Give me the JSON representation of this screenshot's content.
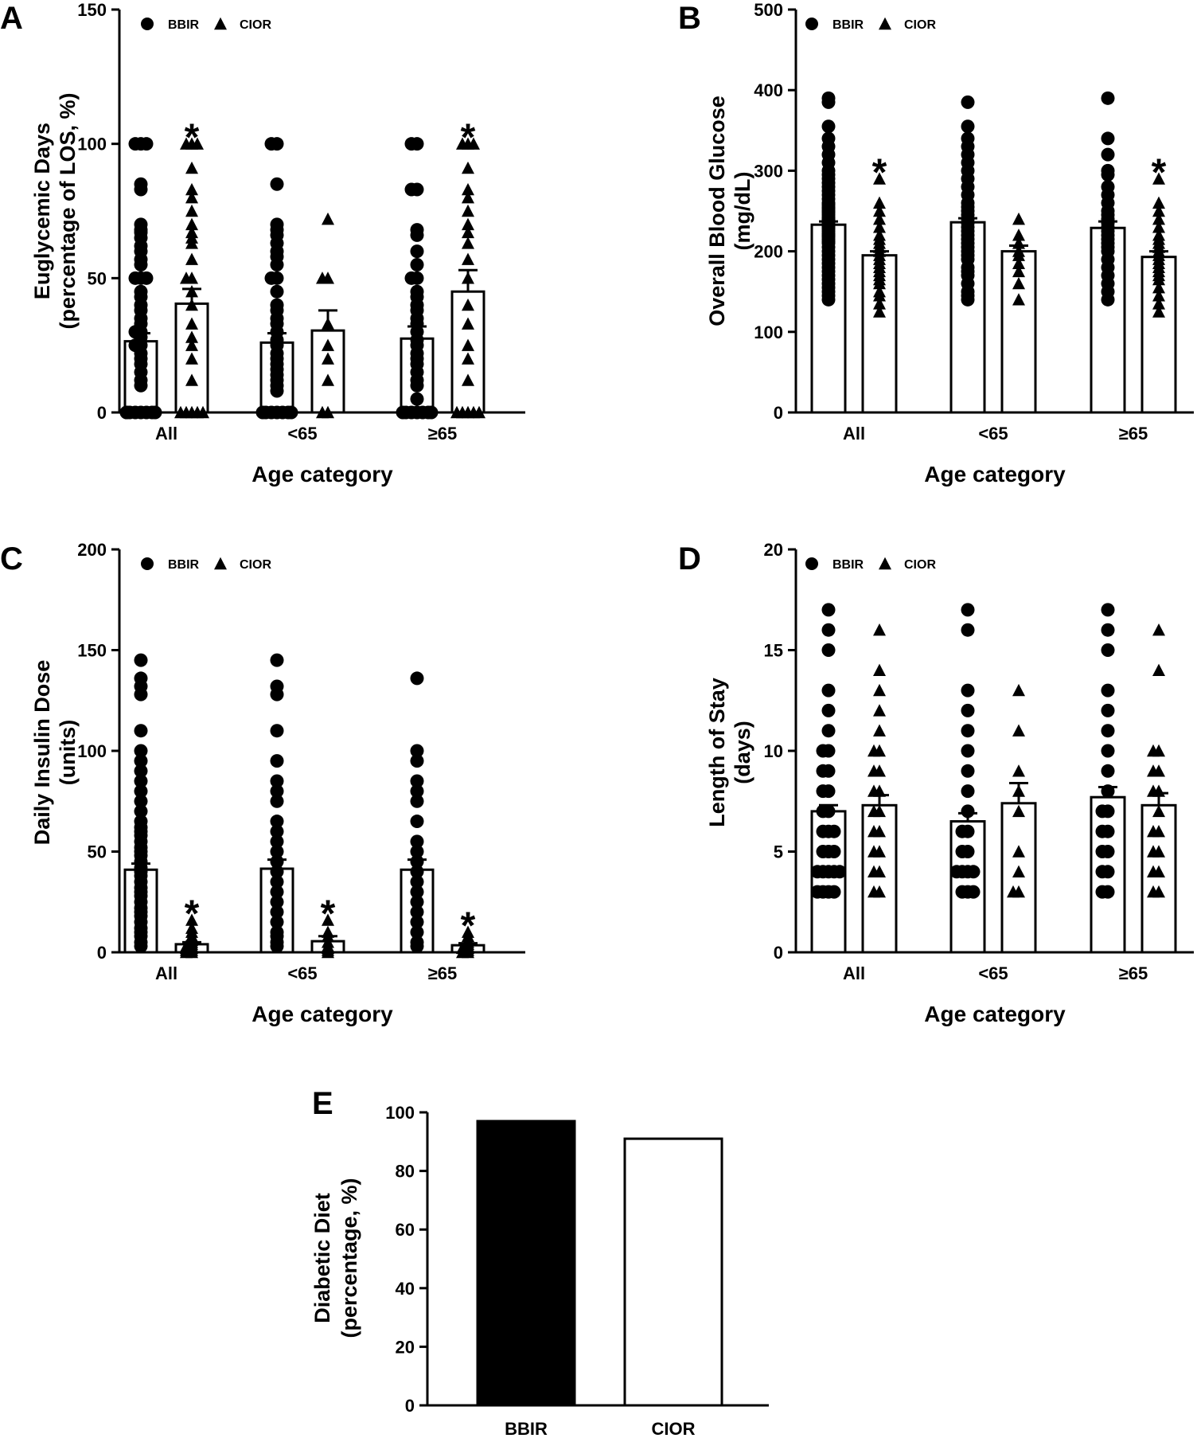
{
  "chart_data": [
    {
      "panel": "A",
      "type": "bar",
      "ylabel_lines": [
        "Euglycemic Days",
        "(percentage of LOS, %)"
      ],
      "xlabel": "Age category",
      "categories": [
        "All",
        "<65",
        "≥65"
      ],
      "ylim": [
        0,
        150
      ],
      "yticks": [
        "0",
        "50",
        "100",
        "150"
      ],
      "legend": [
        "BBIR",
        "CIOR"
      ],
      "significance_marker": "*",
      "series": [
        {
          "name": "BBIR",
          "marker": "circle",
          "means": [
            26.5,
            26,
            27.5
          ],
          "sems": [
            3,
            3.5,
            4.5
          ],
          "points": [
            [
              0,
              0,
              0,
              0,
              0,
              0,
              0,
              0,
              10,
              12,
              15,
              18,
              20,
              22,
              25,
              25,
              28,
              30,
              30,
              33,
              35,
              38,
              40,
              43,
              45,
              50,
              50,
              50,
              55,
              57,
              60,
              62,
              65,
              67,
              68,
              70,
              83,
              85,
              100,
              100,
              100
            ],
            [
              0,
              0,
              0,
              0,
              0,
              0,
              0,
              8,
              10,
              12,
              14,
              16,
              18,
              20,
              22,
              25,
              27,
              30,
              33,
              35,
              38,
              40,
              45,
              50,
              50,
              55,
              58,
              60,
              63,
              66,
              68,
              70,
              85,
              100,
              100
            ],
            [
              0,
              0,
              0,
              0,
              0,
              0,
              0,
              5,
              10,
              12,
              15,
              18,
              20,
              22,
              25,
              27,
              30,
              33,
              35,
              38,
              40,
              43,
              45,
              50,
              50,
              55,
              60,
              66,
              68,
              83,
              83,
              100,
              100
            ]
          ]
        },
        {
          "name": "CIOR",
          "marker": "triangle",
          "means": [
            40.5,
            30.5,
            45
          ],
          "sems": [
            5.5,
            7.5,
            8
          ],
          "points": [
            [
              0,
              0,
              0,
              0,
              0,
              12,
              20,
              25,
              28,
              33,
              40,
              45,
              50,
              50,
              57,
              63,
              65,
              67,
              70,
              75,
              80,
              83,
              91,
              100,
              100,
              100
            ],
            [
              0,
              0,
              12,
              20,
              25,
              33,
              50,
              50,
              72
            ],
            [
              0,
              0,
              0,
              0,
              0,
              12,
              20,
              25,
              33,
              40,
              50,
              57,
              63,
              67,
              70,
              75,
              80,
              83,
              91,
              100,
              100,
              100
            ]
          ]
        }
      ],
      "significant": [
        [],
        [
          0,
          2
        ]
      ]
    },
    {
      "panel": "B",
      "type": "bar",
      "ylabel_lines": [
        "Overall Blood Glucose",
        "(mg/dL)"
      ],
      "xlabel": "Age category",
      "categories": [
        "All",
        "<65",
        "≥65"
      ],
      "ylim": [
        0,
        500
      ],
      "yticks": [
        "0",
        "100",
        "200",
        "300",
        "400",
        "500"
      ],
      "legend": [
        "BBIR",
        "CIOR"
      ],
      "significance_marker": "*",
      "series": [
        {
          "name": "BBIR",
          "marker": "circle",
          "means": [
            233,
            236,
            229
          ],
          "sems": [
            4,
            5,
            8
          ],
          "points": [
            [
              140,
              145,
              150,
              155,
              160,
              165,
              170,
              175,
              180,
              185,
              190,
              195,
              200,
              205,
              210,
              212,
              215,
              218,
              220,
              222,
              225,
              228,
              230,
              232,
              235,
              238,
              240,
              242,
              245,
              248,
              250,
              253,
              255,
              258,
              260,
              265,
              270,
              275,
              280,
              285,
              290,
              295,
              300,
              310,
              320,
              330,
              340,
              355,
              385,
              390
            ],
            [
              140,
              145,
              150,
              160,
              170,
              175,
              180,
              190,
              195,
              200,
              205,
              210,
              215,
              220,
              225,
              230,
              235,
              240,
              245,
              250,
              255,
              260,
              270,
              280,
              290,
              300,
              310,
              320,
              330,
              340,
              355,
              385
            ],
            [
              140,
              150,
              160,
              170,
              180,
              190,
              200,
              205,
              210,
              215,
              220,
              225,
              230,
              235,
              240,
              245,
              250,
              260,
              270,
              280,
              295,
              300,
              320,
              340,
              390
            ]
          ]
        },
        {
          "name": "CIOR",
          "marker": "triangle",
          "means": [
            195,
            200,
            193
          ],
          "sems": [
            5,
            7,
            7
          ],
          "points": [
            [
              125,
              135,
              145,
              150,
              160,
              165,
              170,
              175,
              180,
              185,
              190,
              195,
              200,
              205,
              210,
              215,
              220,
              230,
              240,
              250,
              260,
              290
            ],
            [
              140,
              160,
              175,
              185,
              195,
              200,
              210,
              220,
              240
            ],
            [
              125,
              135,
              145,
              155,
              165,
              170,
              175,
              180,
              185,
              190,
              195,
              200,
              205,
              210,
              215,
              220,
              230,
              240,
              250,
              260,
              290
            ]
          ]
        }
      ],
      "significant": [
        [],
        [
          0,
          2
        ]
      ]
    },
    {
      "panel": "C",
      "type": "bar",
      "ylabel_lines": [
        "Daily Insulin Dose",
        "(units)"
      ],
      "xlabel": "Age category",
      "categories": [
        "All",
        "<65",
        "≥65"
      ],
      "ylim": [
        0,
        200
      ],
      "yticks": [
        "0",
        "50",
        "100",
        "150",
        "200"
      ],
      "legend": [
        "BBIR",
        "CIOR"
      ],
      "significance_marker": "*",
      "series": [
        {
          "name": "BBIR",
          "marker": "circle",
          "means": [
            41,
            41.5,
            41
          ],
          "sems": [
            3,
            4.5,
            5
          ],
          "points": [
            [
              3,
              5,
              8,
              10,
              12,
              15,
              18,
              20,
              22,
              25,
              28,
              30,
              32,
              35,
              38,
              40,
              42,
              45,
              48,
              50,
              52,
              55,
              58,
              60,
              62,
              65,
              70,
              75,
              80,
              85,
              90,
              95,
              100,
              110,
              128,
              132,
              136,
              145
            ],
            [
              3,
              5,
              8,
              10,
              15,
              20,
              25,
              30,
              35,
              40,
              45,
              50,
              55,
              60,
              65,
              75,
              80,
              85,
              95,
              110,
              128,
              132,
              145
            ],
            [
              3,
              5,
              10,
              15,
              20,
              25,
              30,
              35,
              40,
              45,
              50,
              55,
              65,
              75,
              80,
              85,
              95,
              100,
              136
            ]
          ]
        },
        {
          "name": "CIOR",
          "marker": "triangle",
          "means": [
            4,
            5.5,
            3.5
          ],
          "sems": [
            1,
            2.5,
            1
          ],
          "points": [
            [
              0,
              0,
              1,
              1,
              2,
              2,
              3,
              3,
              4,
              5,
              6,
              7,
              8,
              10,
              12,
              16
            ],
            [
              0,
              1,
              2,
              3,
              5,
              8,
              10,
              16
            ],
            [
              0,
              0,
              1,
              2,
              2,
              3,
              4,
              5,
              6,
              8,
              10
            ]
          ]
        }
      ],
      "significant": [
        [],
        [
          0,
          1,
          2
        ]
      ]
    },
    {
      "panel": "D",
      "type": "bar",
      "ylabel_lines": [
        "Length of Stay",
        "(days)"
      ],
      "xlabel": "Age category",
      "categories": [
        "All",
        "<65",
        "≥65"
      ],
      "ylim": [
        0,
        20
      ],
      "yticks": [
        "0",
        "5",
        "10",
        "15",
        "20"
      ],
      "legend": [
        "BBIR",
        "CIOR"
      ],
      "significance_marker": "*",
      "series": [
        {
          "name": "BBIR",
          "marker": "circle",
          "means": [
            7,
            6.5,
            7.7
          ],
          "sems": [
            0.3,
            0.4,
            0.5
          ],
          "points": [
            [
              3,
              3,
              3,
              3,
              4,
              4,
              4,
              4,
              4,
              5,
              5,
              5,
              6,
              6,
              6,
              7,
              7,
              8,
              8,
              9,
              9,
              10,
              10,
              11,
              12,
              13,
              15,
              16,
              17
            ],
            [
              3,
              3,
              3,
              4,
              4,
              4,
              4,
              5,
              5,
              6,
              6,
              7,
              8,
              9,
              10,
              11,
              12,
              13,
              16,
              17
            ],
            [
              3,
              3,
              4,
              4,
              5,
              5,
              6,
              6,
              7,
              7,
              8,
              9,
              10,
              11,
              12,
              13,
              15,
              16,
              17
            ]
          ]
        },
        {
          "name": "CIOR",
          "marker": "triangle",
          "means": [
            7.3,
            7.4,
            7.3
          ],
          "sems": [
            0.5,
            1,
            0.6
          ],
          "points": [
            [
              3,
              3,
              4,
              4,
              5,
              5,
              6,
              6,
              7,
              7,
              8,
              8,
              9,
              9,
              10,
              10,
              11,
              12,
              13,
              14,
              16
            ],
            [
              3,
              3,
              4,
              5,
              7,
              8,
              9,
              11,
              13
            ],
            [
              3,
              3,
              4,
              4,
              5,
              5,
              6,
              6,
              7,
              8,
              8,
              9,
              9,
              10,
              10,
              14,
              16
            ]
          ]
        }
      ],
      "significant": [
        [],
        []
      ]
    },
    {
      "panel": "E",
      "type": "bar",
      "ylabel_lines": [
        "Diabetic Diet",
        "(percentage, %)"
      ],
      "categories": [
        "BBIR",
        "CIOR"
      ],
      "values": [
        97,
        91
      ],
      "ylim": [
        0,
        100
      ],
      "yticks": [
        "0",
        "20",
        "40",
        "60",
        "80",
        "100"
      ],
      "fills": [
        "#000000",
        "#ffffff"
      ]
    }
  ]
}
